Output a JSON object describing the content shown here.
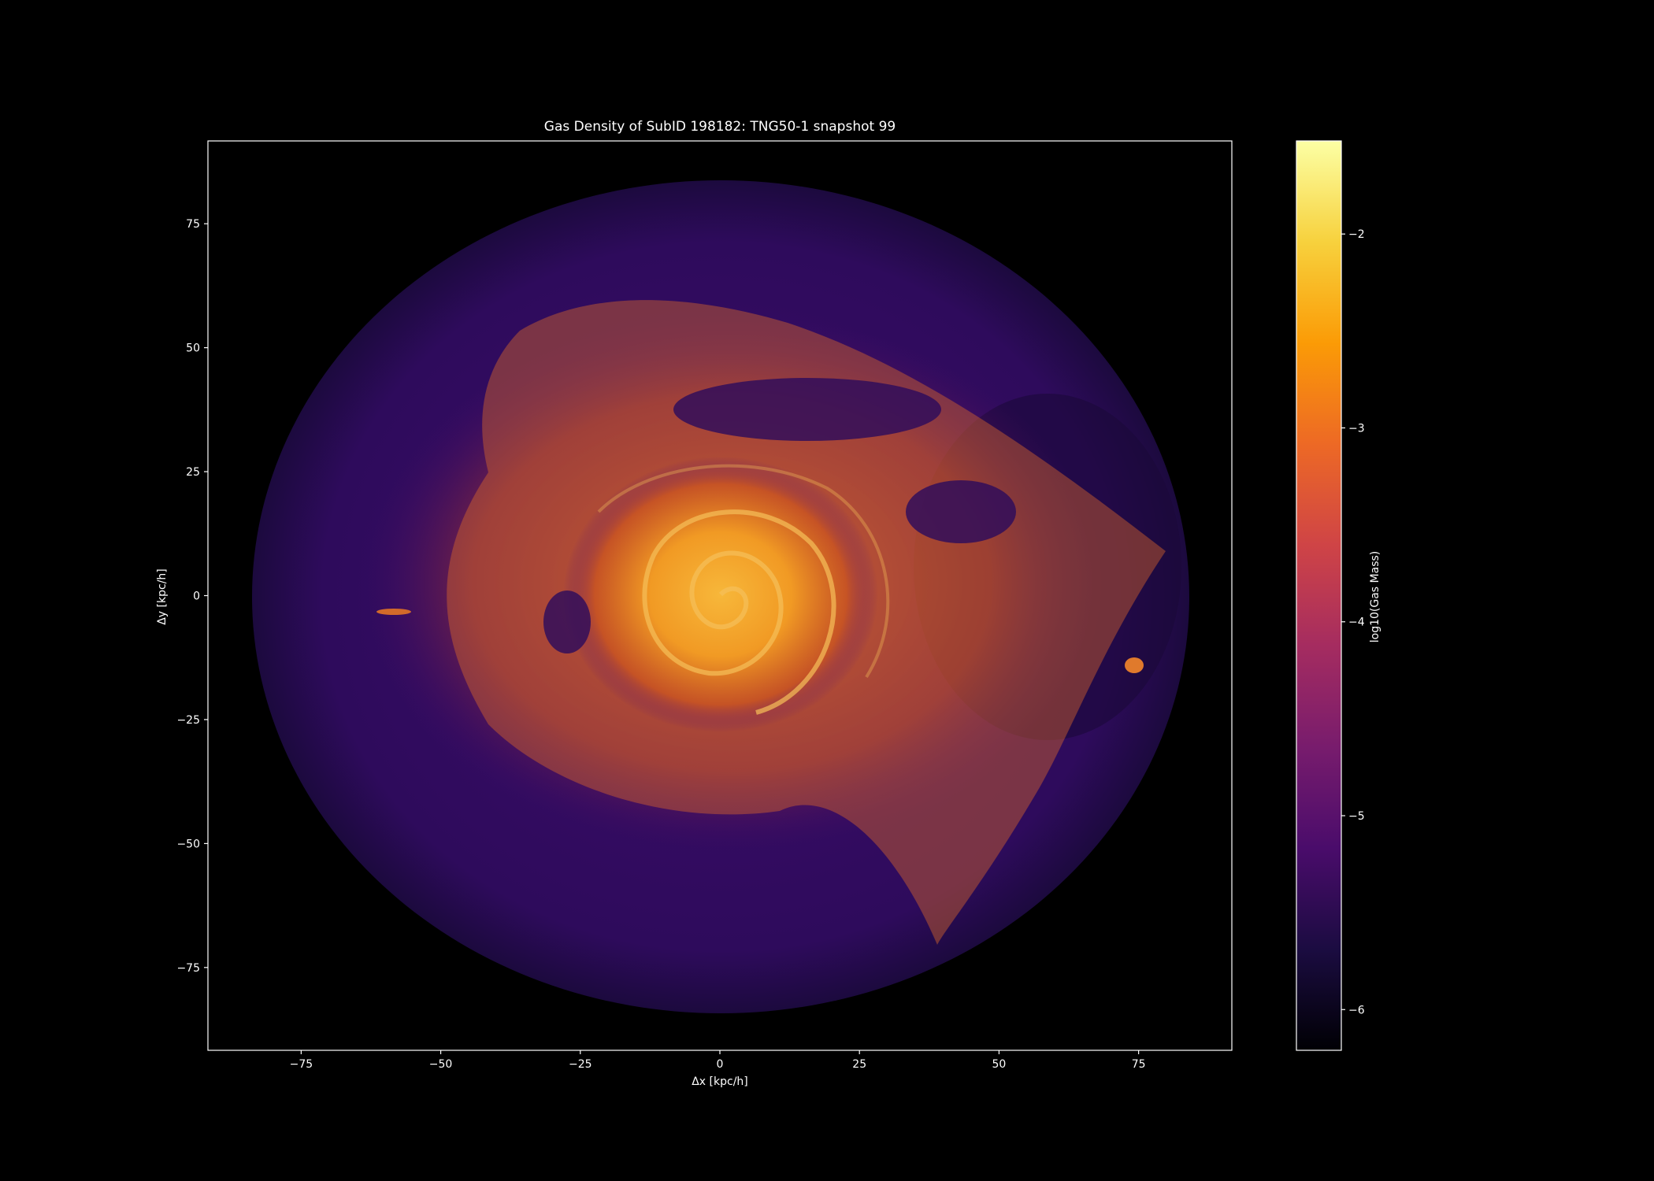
{
  "chart_data": {
    "type": "image",
    "title": "Gas Density of SubID 198182: TNG50-1 snapshot 99",
    "xlabel": "Δx [kpc/h]",
    "ylabel": "Δy [kpc/h]",
    "xlim": [
      -91.7,
      91.7
    ],
    "ylim": [
      -91.7,
      91.7
    ],
    "xticks": [
      {
        "value": -75,
        "label": "−75"
      },
      {
        "value": -50,
        "label": "−50"
      },
      {
        "value": -25,
        "label": "−25"
      },
      0,
      25,
      50,
      75
    ],
    "yticks": [
      {
        "value": -75,
        "label": "−75"
      },
      {
        "value": -50,
        "label": "−50"
      },
      {
        "value": -25,
        "label": "−25"
      },
      0,
      25,
      50,
      75
    ],
    "colorbar": {
      "label": "log10(Gas Mass)",
      "colormap": "inferno",
      "lim": [
        -6.21,
        -1.52
      ],
      "ticks": [
        {
          "value": -6,
          "label": "−6"
        },
        {
          "value": -5,
          "label": "−5"
        },
        {
          "value": -4,
          "label": "−4"
        },
        {
          "value": -3,
          "label": "−3"
        },
        {
          "value": -2,
          "label": "−2"
        }
      ]
    }
  }
}
